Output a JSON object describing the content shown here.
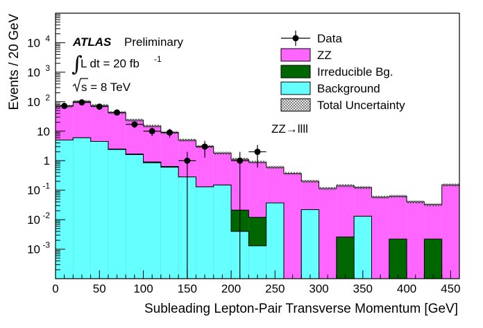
{
  "chart_data": {
    "type": "histogram",
    "xlabel": "Subleading Lepton-Pair Transverse Momentum [GeV]",
    "ylabel": "Events / 20 GeV",
    "xlim": [
      0,
      460
    ],
    "ylog": true,
    "ylim_log10": [
      -4,
      5
    ],
    "x_ticks": [
      0,
      50,
      100,
      150,
      200,
      250,
      300,
      350,
      400,
      450
    ],
    "y_ticks": [
      {
        "value": 0.001,
        "label": "10",
        "exp": "-3"
      },
      {
        "value": 0.01,
        "label": "10",
        "exp": "-2"
      },
      {
        "value": 0.1,
        "label": "10",
        "exp": "-1"
      },
      {
        "value": 1,
        "label": "1",
        "exp": ""
      },
      {
        "value": 10,
        "label": "10",
        "exp": ""
      },
      {
        "value": 100,
        "label": "10",
        "exp": "2"
      },
      {
        "value": 1000,
        "label": "10",
        "exp": "3"
      },
      {
        "value": 10000,
        "label": "10",
        "exp": "4"
      }
    ],
    "bin_edges": [
      0,
      20,
      40,
      60,
      80,
      100,
      120,
      140,
      160,
      180,
      200,
      220,
      240,
      260,
      280,
      300,
      320,
      340,
      360,
      380,
      400,
      420,
      440,
      460
    ],
    "stack": [
      {
        "name": "Background",
        "color": "#66ffff",
        "values": [
          5.0,
          6.0,
          4.5,
          2.4,
          1.6,
          0.85,
          0.6,
          0.28,
          0.13,
          0.15,
          0.004,
          0.0013,
          0.037,
          0.0001,
          0.022,
          0.0001,
          0.0001,
          0.013,
          0.0001,
          0.0001,
          0.0001,
          0.0001,
          0.0001
        ]
      },
      {
        "name": "Irreducible Bg.",
        "color": "#006600",
        "values": [
          0.0,
          0.0,
          0.0,
          0.1,
          0.08,
          0.06,
          0.04,
          0.0,
          0.0,
          0.0,
          0.017,
          0.0107,
          0.0,
          0.0,
          0.0,
          0.0,
          0.0025,
          0.0,
          0.0,
          0.0021,
          0.0,
          0.0021,
          0.0
        ]
      },
      {
        "name": "ZZ",
        "color": "#ff66ff",
        "values": [
          65,
          95,
          70,
          40,
          22,
          14,
          8.4,
          4.7,
          2.9,
          1.65,
          1.1,
          0.88,
          0.56,
          0.37,
          0.178,
          0.115,
          0.14,
          0.11,
          0.058,
          0.06,
          0.04,
          0.03,
          0.15
        ]
      }
    ],
    "total_uncertainty_rel": 0.12,
    "data": [
      {
        "x": 10,
        "y": 72,
        "xerr": 10
      },
      {
        "x": 30,
        "y": 95,
        "xerr": 10
      },
      {
        "x": 50,
        "y": 68,
        "xerr": 10
      },
      {
        "x": 70,
        "y": 43,
        "xerr": 10
      },
      {
        "x": 90,
        "y": 17,
        "xerr": 10
      },
      {
        "x": 110,
        "y": 10,
        "xerr": 10
      },
      {
        "x": 130,
        "y": 9,
        "xerr": 10
      },
      {
        "x": 150,
        "y": 1,
        "xerr": 10
      },
      {
        "x": 170,
        "y": 3,
        "xerr": 10
      },
      {
        "x": 210,
        "y": 1,
        "xerr": 10
      },
      {
        "x": 230,
        "y": 2,
        "xerr": 10
      }
    ],
    "legend": [
      {
        "label": "Data",
        "kind": "marker"
      },
      {
        "label": "ZZ",
        "kind": "fill",
        "color": "#ff66ff"
      },
      {
        "label": "Irreducible Bg.",
        "kind": "fill",
        "color": "#006600"
      },
      {
        "label": "Background",
        "kind": "fill",
        "color": "#66ffff"
      },
      {
        "label": "Total Uncertainty",
        "kind": "hatch"
      }
    ],
    "legend_placement": "top-right",
    "annotations": {
      "atlas": "ATLAS",
      "preliminary": "Preliminary",
      "lumi_text": "L dt = 20 fb",
      "lumi_exp": "-1",
      "sqrt_s": "s = 8 TeV",
      "process": "ZZ→llll"
    }
  }
}
